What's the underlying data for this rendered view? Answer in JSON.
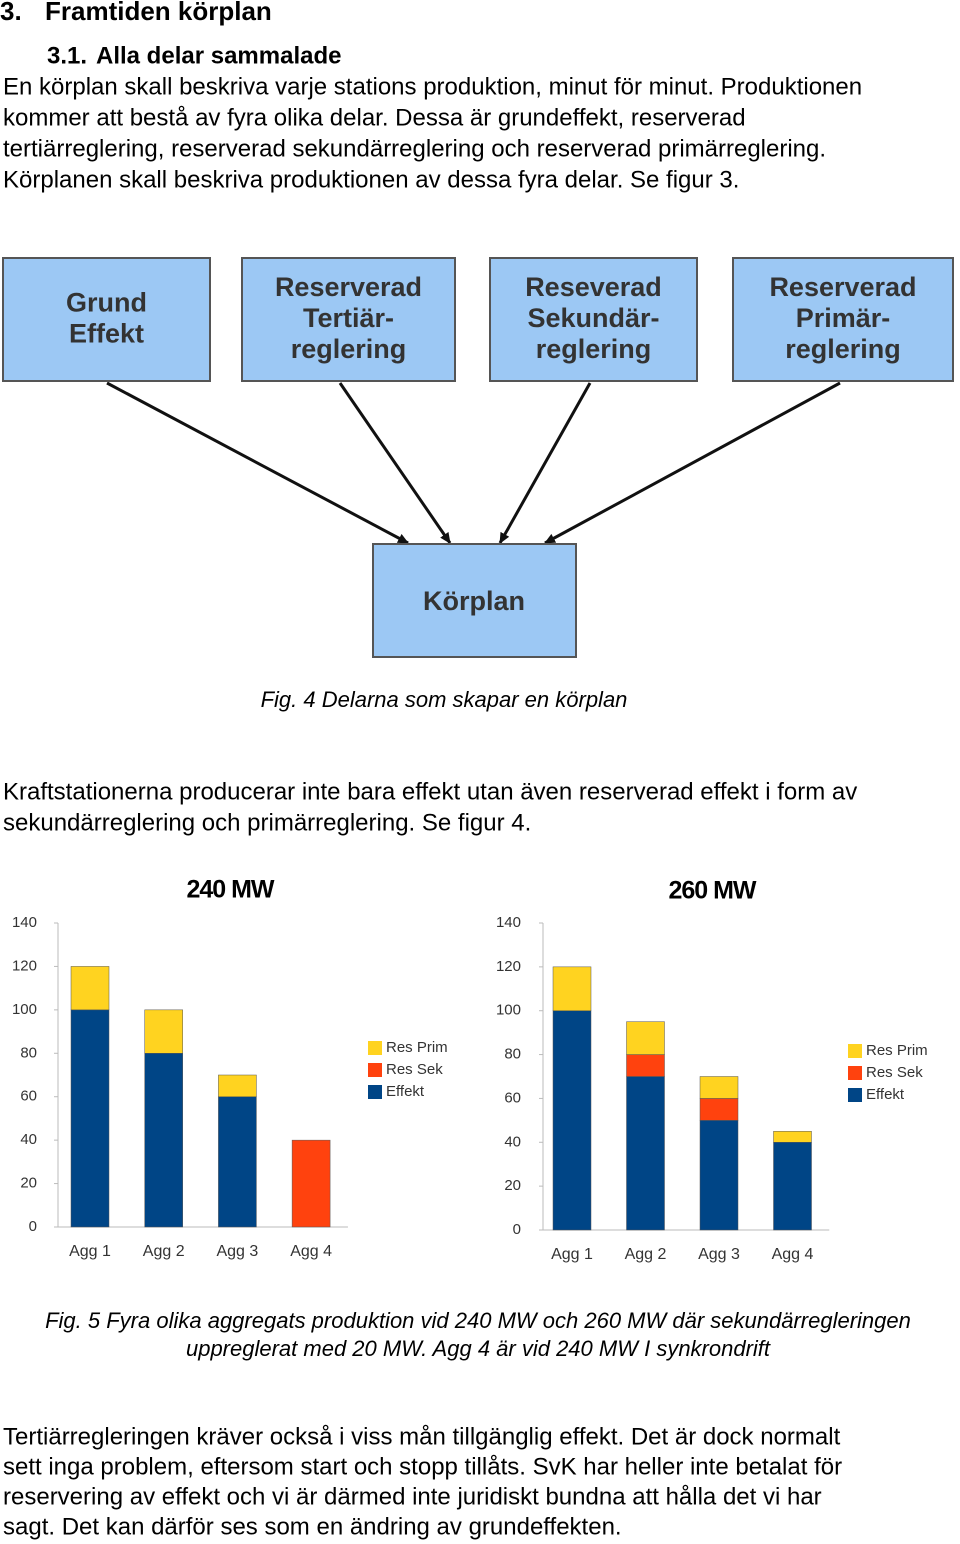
{
  "section": {
    "number": "3.",
    "title": "Framtiden körplan"
  },
  "subsection": {
    "number": "3.1.",
    "title": "Alla delar sammalade"
  },
  "paragraphs": [
    [
      "En körplan skall beskriva varje stations produktion, minut för minut. Produktionen",
      "kommer att bestå av fyra olika delar. Dessa är grundeffekt, reserverad",
      "tertiärreglering, reserverad sekundärreglering och reserverad primärreglering.",
      "Körplanen skall beskriva produktionen av dessa fyra delar. Se figur 3."
    ],
    [
      "Kraftstationerna producerar inte bara effekt utan även reserverad effekt i form av",
      "sekundärreglering och primärreglering. Se figur 4."
    ],
    [
      "Tertiärregleringen kräver också i viss mån tillgänglig effekt. Det är dock normalt",
      "sett inga problem, eftersom start och stopp tillåts. SvK har heller inte betalat för",
      "reservering av effekt och vi är därmed inte juridiskt bundna att hålla det vi har",
      "sagt. Det kan därför ses som en ändring av grundeffekten."
    ]
  ],
  "diagram": {
    "nodes": [
      {
        "label": [
          "Grund",
          "Effekt"
        ]
      },
      {
        "label": [
          "Reserverad",
          "Tertiär-",
          "reglering"
        ]
      },
      {
        "label": [
          "Reseverad",
          "Sekundär-",
          "reglering"
        ]
      },
      {
        "label": [
          "Reserverad",
          "Primär-",
          "reglering"
        ]
      }
    ],
    "target": {
      "label": "Körplan"
    }
  },
  "captions": [
    [
      "Fig. 4 Delarna som skapar en körplan"
    ],
    [
      "Fig. 5 Fyra olika aggregats produktion vid 240 MW och 260 MW där sekundärregleringen",
      "uppreglerat med 20 MW. Agg 4 är vid 240 MW I synkrondrift"
    ]
  ],
  "chart_data": [
    {
      "type": "stacked_bar",
      "title": "240 MW",
      "categories": [
        "Agg 1",
        "Agg 2",
        "Agg 3",
        "Agg 4"
      ],
      "series": [
        {
          "name": "Effekt",
          "color": "#004586",
          "values": [
            100,
            80,
            60,
            0
          ]
        },
        {
          "name": "Res Sek",
          "color": "#ff420e",
          "values": [
            0,
            0,
            0,
            40
          ]
        },
        {
          "name": "Res Prim",
          "color": "#ffd320",
          "values": [
            20,
            20,
            10,
            0
          ]
        }
      ],
      "ylim": [
        0,
        140
      ],
      "yticks": [
        0,
        20,
        40,
        60,
        80,
        100,
        120,
        140
      ],
      "legend": "right"
    },
    {
      "type": "stacked_bar",
      "title": "260 MW",
      "categories": [
        "Agg 1",
        "Agg 2",
        "Agg 3",
        "Agg 4"
      ],
      "series": [
        {
          "name": "Effekt",
          "color": "#004586",
          "values": [
            100,
            70,
            50,
            40
          ]
        },
        {
          "name": "Res Sek",
          "color": "#ff420e",
          "values": [
            0,
            10,
            10,
            0
          ]
        },
        {
          "name": "Res Prim",
          "color": "#ffd320",
          "values": [
            20,
            15,
            10,
            5
          ]
        }
      ],
      "ylim": [
        0,
        140
      ],
      "yticks": [
        0,
        20,
        40,
        60,
        80,
        100,
        120,
        140
      ],
      "legend": "right"
    }
  ]
}
